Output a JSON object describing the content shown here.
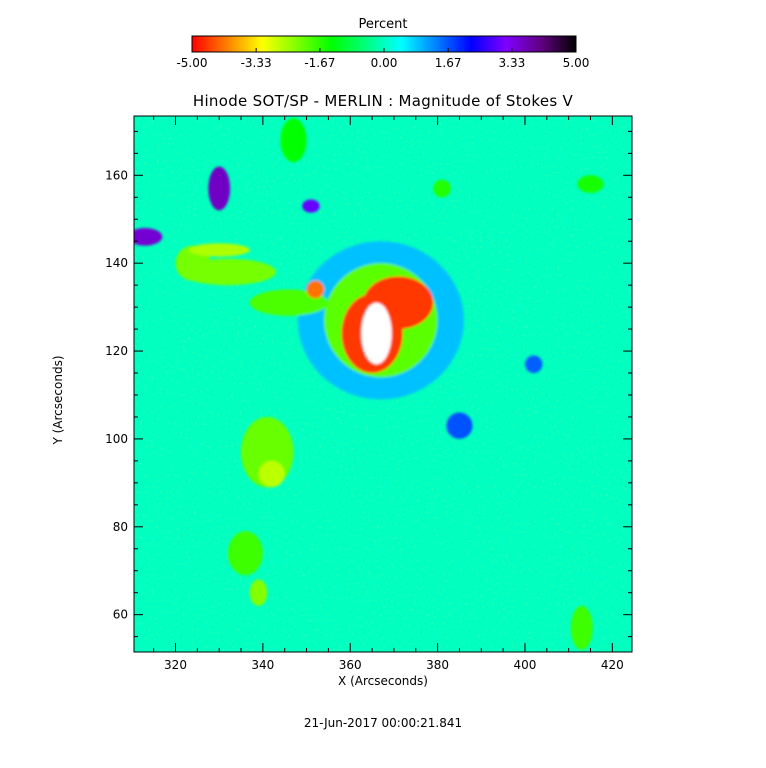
{
  "chart_data": {
    "type": "heatmap",
    "title": "Hinode SOT/SP - MERLIN : Magnitude of Stokes V",
    "xlabel": "X (Arcseconds)",
    "ylabel": "Y (Arcseconds)",
    "xlim": [
      310.5,
      424.5
    ],
    "ylim": [
      51.5,
      173.5
    ],
    "x_ticks": [
      320,
      340,
      360,
      380,
      400,
      420
    ],
    "y_ticks": [
      60,
      80,
      100,
      120,
      140,
      160
    ],
    "x_tick_labels": [
      "320",
      "340",
      "360",
      "380",
      "400",
      "420"
    ],
    "y_tick_labels": [
      "60",
      "80",
      "100",
      "120",
      "140",
      "160"
    ],
    "grid": false,
    "colorbar": {
      "label": "Percent",
      "range": [
        -5.0,
        5.0
      ],
      "ticks": [
        -5.0,
        -3.33,
        -1.67,
        0.0,
        1.67,
        3.33,
        5.0
      ],
      "tick_labels": [
        "-5.00",
        "-3.33",
        "-1.67",
        "0.00",
        "1.67",
        "3.33",
        "5.00"
      ],
      "colormap": [
        "#ff0000",
        "#ff8000",
        "#ffff00",
        "#80ff00",
        "#00ff00",
        "#00ff80",
        "#00ffff",
        "#0080ff",
        "#0000ff",
        "#8000ff",
        "#600080",
        "#000000"
      ]
    },
    "background_value": 0.0,
    "features": [
      {
        "x": 366,
        "y": 124,
        "rx": 3.5,
        "ry": 7,
        "value": -5.5
      },
      {
        "x": 365,
        "y": 124,
        "rx": 7,
        "ry": 9,
        "value": -4.6
      },
      {
        "x": 371,
        "y": 131,
        "rx": 8,
        "ry": 6,
        "value": -4.6
      },
      {
        "x": 367,
        "y": 127,
        "rx": 13,
        "ry": 13,
        "value": -2.0
      },
      {
        "x": 367,
        "y": 127,
        "rx": 19,
        "ry": 18,
        "value": 0.9
      },
      {
        "x": 352,
        "y": 134,
        "rx": 2,
        "ry": 2,
        "value": -4.2
      },
      {
        "x": 332,
        "y": 138,
        "rx": 11,
        "ry": 3,
        "value": -2.2
      },
      {
        "x": 330,
        "y": 143,
        "rx": 7,
        "ry": 1.5,
        "value": -2.6
      },
      {
        "x": 346,
        "y": 131,
        "rx": 9,
        "ry": 3,
        "value": -1.9
      },
      {
        "x": 324,
        "y": 140,
        "rx": 4,
        "ry": 4,
        "value": -2.2
      },
      {
        "x": 330,
        "y": 157,
        "rx": 2.5,
        "ry": 5,
        "value": 3.6
      },
      {
        "x": 313,
        "y": 146,
        "rx": 4,
        "ry": 2,
        "value": 3.5
      },
      {
        "x": 351,
        "y": 153,
        "rx": 2,
        "ry": 1.5,
        "value": 3.0
      },
      {
        "x": 341,
        "y": 97,
        "rx": 6,
        "ry": 8,
        "value": -2.1
      },
      {
        "x": 342,
        "y": 92,
        "rx": 3,
        "ry": 3,
        "value": -2.7
      },
      {
        "x": 336,
        "y": 74,
        "rx": 4,
        "ry": 5,
        "value": -1.8
      },
      {
        "x": 339,
        "y": 65,
        "rx": 2,
        "ry": 3,
        "value": -2.3
      },
      {
        "x": 413,
        "y": 57,
        "rx": 2.5,
        "ry": 5,
        "value": -1.8
      },
      {
        "x": 385,
        "y": 103,
        "rx": 3,
        "ry": 3,
        "value": 1.7
      },
      {
        "x": 402,
        "y": 117,
        "rx": 2,
        "ry": 2,
        "value": 1.6
      },
      {
        "x": 347,
        "y": 168,
        "rx": 3,
        "ry": 5,
        "value": -1.4
      },
      {
        "x": 381,
        "y": 157,
        "rx": 2,
        "ry": 2,
        "value": -1.6
      },
      {
        "x": 415,
        "y": 158,
        "rx": 3,
        "ry": 2,
        "value": -1.5
      }
    ]
  },
  "timestamp": "21-Jun-2017 00:00:21.841"
}
